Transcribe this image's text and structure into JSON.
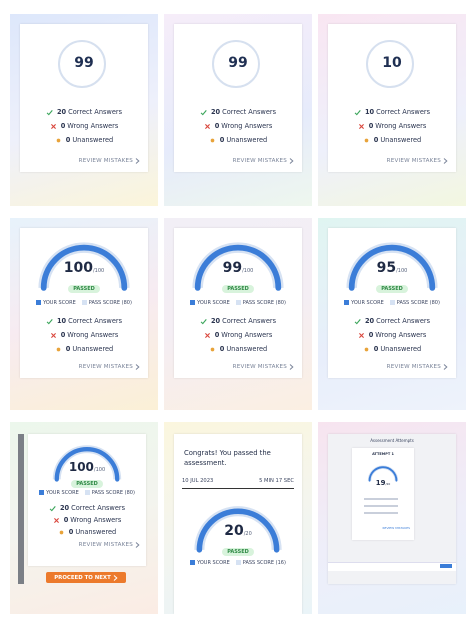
{
  "tiles": [
    {
      "score": "99",
      "stats": [
        {
          "count": "20",
          "label": "Correct Answers"
        },
        {
          "count": "0",
          "label": "Wrong Answers"
        },
        {
          "count": "0",
          "label": "Unanswered"
        }
      ],
      "link": "REVIEW MISTAKES"
    },
    {
      "score": "99",
      "stats": [
        {
          "count": "20",
          "label": "Correct Answers"
        },
        {
          "count": "0",
          "label": "Wrong Answers"
        },
        {
          "count": "0",
          "label": "Unanswered"
        }
      ],
      "link": "REVIEW MISTAKES"
    },
    {
      "score": "10",
      "stats": [
        {
          "count": "10",
          "label": "Correct Answers"
        },
        {
          "count": "0",
          "label": "Wrong Answers"
        },
        {
          "count": "0",
          "label": "Unanswered"
        }
      ],
      "link": "REVIEW MISTAKES"
    },
    {
      "score": "100",
      "max": "/100",
      "status": "PASSED",
      "legend": {
        "your": "YOUR SCORE",
        "pass": "PASS SCORE (80)"
      },
      "stats": [
        {
          "count": "10",
          "label": "Correct Answers"
        },
        {
          "count": "0",
          "label": "Wrong Answers"
        },
        {
          "count": "0",
          "label": "Unanswered"
        }
      ],
      "link": "REVIEW MISTAKES"
    },
    {
      "score": "99",
      "max": "/100",
      "status": "PASSED",
      "legend": {
        "your": "YOUR SCORE",
        "pass": "PASS SCORE (80)"
      },
      "stats": [
        {
          "count": "20",
          "label": "Correct Answers"
        },
        {
          "count": "0",
          "label": "Wrong Answers"
        },
        {
          "count": "0",
          "label": "Unanswered"
        }
      ],
      "link": "REVIEW MISTAKES"
    },
    {
      "score": "95",
      "max": "/100",
      "status": "PASSED",
      "legend": {
        "your": "YOUR SCORE",
        "pass": "PASS SCORE (80)"
      },
      "stats": [
        {
          "count": "20",
          "label": "Correct Answers"
        },
        {
          "count": "0",
          "label": "Wrong Answers"
        },
        {
          "count": "0",
          "label": "Unanswered"
        }
      ],
      "link": "REVIEW MISTAKES"
    },
    {
      "score": "100",
      "max": "/100",
      "status": "PASSED",
      "legend": {
        "your": "YOUR SCORE",
        "pass": "PASS SCORE (80)"
      },
      "stats": [
        {
          "count": "20",
          "label": "Correct Answers"
        },
        {
          "count": "0",
          "label": "Wrong Answers"
        },
        {
          "count": "0",
          "label": "Unanswered"
        }
      ],
      "link": "REVIEW MISTAKES",
      "button": "PROCEED TO NEXT"
    },
    {
      "message": "Congrats! You passed the assessment.",
      "date": "10 JUL 2023",
      "duration": "5 MIN 17 SEC",
      "score": "20",
      "max": "/20",
      "status": "PASSED",
      "legend": {
        "your": "YOUR SCORE",
        "pass": "PASS SCORE (16)"
      }
    },
    {
      "title": "Assessment Attempts",
      "attempt": "ATTEMPT 1",
      "score": "19",
      "max": "/20",
      "link": "REVIEW MISTAKES"
    }
  ]
}
